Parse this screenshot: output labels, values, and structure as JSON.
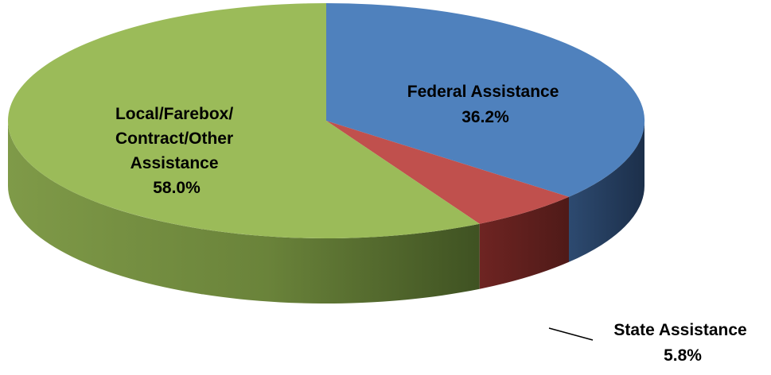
{
  "chart_data": {
    "type": "pie",
    "title": "",
    "three_d": true,
    "series": [
      {
        "slices": [
          {
            "label": "Federal Assistance",
            "value": 36.2,
            "value_label": "36.2%",
            "color": "#4F81BD"
          },
          {
            "label": "State Assistance",
            "value": 5.8,
            "value_label": "5.8%",
            "color": "#C0504D"
          },
          {
            "label": "Local/Farebox/Contract/Other Assistance",
            "value": 58.0,
            "value_label": "58.0%",
            "color": "#9BBB59"
          }
        ]
      }
    ]
  },
  "labels": {
    "federal": {
      "lines": [
        "Federal Assistance",
        "36.2%"
      ]
    },
    "state": {
      "lines": [
        "State Assistance",
        "5.8%"
      ]
    },
    "local": {
      "lines": [
        "Local/Farebox/",
        "Contract/Other",
        "Assistance",
        "58.0%"
      ]
    }
  }
}
